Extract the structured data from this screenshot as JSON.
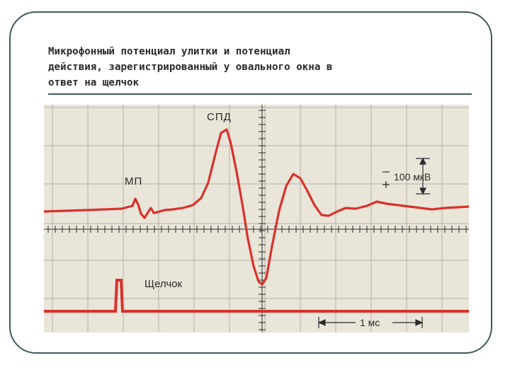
{
  "slide": {
    "title_lines": [
      "Микрофонный потенциал улитки и потенциал",
      "действия, зарегистрированный у овального окна в",
      "ответ на щелчок"
    ]
  },
  "figure": {
    "labels": {
      "spd": "СПД",
      "mp": "МП",
      "amplitude_scale": "100 мкВ",
      "click": "Щелчок",
      "time_scale": "1 мс"
    },
    "colors": {
      "paper": "#e9e5d8",
      "grid": "#b5b1a5",
      "trace": "#d8312c",
      "ink": "#2b2b2b",
      "frame": "#3d5a5a"
    }
  }
}
